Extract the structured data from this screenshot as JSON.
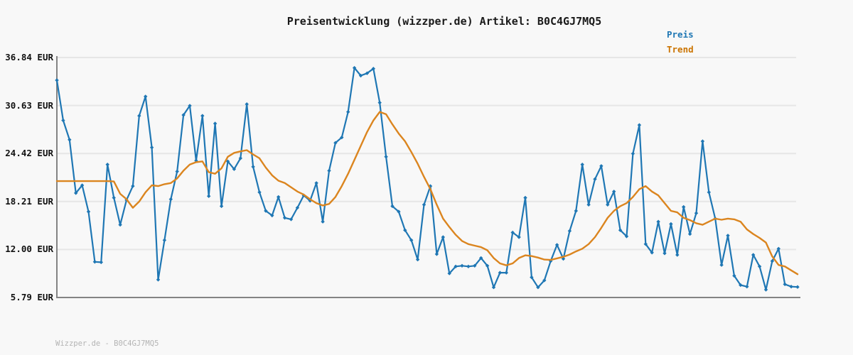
{
  "title": "Preisentwicklung (wizzper.de) Artikel: B0C4GJ7MQ5",
  "watermark": "Wizzper.de - B0C4GJ7MQ5",
  "legend": {
    "items": [
      {
        "label": "Preis",
        "color": "#1f77b4"
      },
      {
        "label": "Trend",
        "color": "#cb7400"
      }
    ]
  },
  "colors": {
    "background": "#f8f8f8",
    "grid": "#e6e6e6",
    "axis": "#848484",
    "preis_line": "#1f77b4",
    "trend_line": "#db851f",
    "title_text": "#1a1a1a",
    "tick_text": "#111111",
    "watermark_text": "#b4b4b4"
  },
  "chart_data": {
    "type": "line",
    "title": "Preisentwicklung (wizzper.de) Artikel: B0C4GJ7MQ5",
    "xlabel": "",
    "ylabel": "",
    "x_axis": {
      "tick_labels_shown": false
    },
    "ylim": [
      5.79,
      36.84
    ],
    "yticks": [
      {
        "value": 36.84,
        "label": "36.84 EUR"
      },
      {
        "value": 30.63,
        "label": "30.63 EUR"
      },
      {
        "value": 24.42,
        "label": "24.42 EUR"
      },
      {
        "value": 18.21,
        "label": "18.21 EUR"
      },
      {
        "value": 12.0,
        "label": "12.00 EUR"
      },
      {
        "value": 5.79,
        "label": "5.79 EUR"
      }
    ],
    "grid": "horizontal",
    "legend_position": "top-right",
    "currency": "EUR",
    "series": [
      {
        "name": "Preis",
        "color": "#1f77b4",
        "marker": "diamond",
        "values": [
          33.9,
          28.7,
          26.2,
          19.3,
          20.3,
          16.9,
          10.4,
          10.35,
          23.0,
          18.7,
          15.2,
          18.4,
          20.2,
          29.3,
          31.8,
          25.2,
          8.1,
          13.2,
          18.5,
          22.1,
          29.4,
          30.6,
          23.5,
          29.3,
          18.9,
          28.3,
          17.6,
          23.4,
          22.4,
          23.8,
          30.8,
          22.7,
          19.4,
          17.0,
          16.4,
          18.8,
          16.1,
          15.9,
          17.4,
          19.0,
          18.3,
          20.6,
          15.6,
          22.2,
          25.8,
          26.5,
          29.8,
          35.5,
          34.5,
          34.8,
          35.4,
          31.0,
          24.0,
          17.6,
          16.9,
          14.5,
          13.2,
          10.7,
          17.8,
          20.2,
          11.4,
          13.6,
          8.9,
          9.8,
          9.9,
          9.8,
          9.9,
          10.9,
          9.9,
          7.1,
          9.0,
          9.0,
          14.2,
          13.6,
          18.7,
          8.4,
          7.1,
          8.0,
          10.5,
          12.6,
          10.8,
          14.4,
          17.0,
          23.0,
          17.8,
          21.1,
          22.8,
          17.8,
          19.5,
          14.5,
          13.7,
          24.4,
          28.1,
          12.7,
          11.6,
          15.6,
          11.5,
          15.3,
          11.3,
          17.5,
          14.0,
          16.7,
          26.0,
          19.4,
          16.0,
          10.0,
          13.8,
          8.6,
          7.4,
          7.2,
          11.3,
          9.8,
          6.8,
          10.5,
          12.1,
          7.5,
          7.2,
          7.15
        ]
      },
      {
        "name": "Trend",
        "color": "#db851f",
        "marker": "none",
        "values": [
          20.85,
          20.85,
          20.85,
          20.85,
          20.85,
          20.85,
          20.85,
          20.85,
          20.85,
          20.8,
          19.2,
          18.5,
          17.4,
          18.2,
          19.4,
          20.3,
          20.2,
          20.45,
          20.6,
          21.2,
          22.2,
          23.0,
          23.3,
          23.4,
          22.0,
          21.8,
          22.5,
          24.0,
          24.5,
          24.7,
          24.85,
          24.3,
          23.8,
          22.6,
          21.6,
          20.9,
          20.6,
          20.05,
          19.5,
          19.1,
          18.5,
          18.0,
          17.7,
          17.9,
          18.8,
          20.2,
          21.8,
          23.6,
          25.4,
          27.2,
          28.7,
          29.8,
          29.5,
          28.2,
          27.0,
          26.0,
          24.6,
          23.1,
          21.4,
          19.8,
          17.8,
          16.0,
          14.9,
          13.9,
          13.1,
          12.7,
          12.5,
          12.3,
          11.9,
          10.9,
          10.2,
          9.95,
          10.2,
          10.9,
          11.25,
          11.15,
          10.95,
          10.7,
          10.65,
          10.85,
          11.05,
          11.35,
          11.75,
          12.1,
          12.7,
          13.6,
          14.8,
          16.1,
          17.0,
          17.6,
          18.0,
          18.8,
          19.8,
          20.2,
          19.5,
          19.0,
          18.0,
          17.0,
          16.8,
          16.1,
          15.8,
          15.4,
          15.2,
          15.6,
          16.0,
          15.85,
          16.0,
          15.9,
          15.6,
          14.6,
          14.0,
          13.5,
          12.9,
          11.1,
          10.0,
          9.8,
          9.3,
          8.8
        ]
      }
    ]
  }
}
